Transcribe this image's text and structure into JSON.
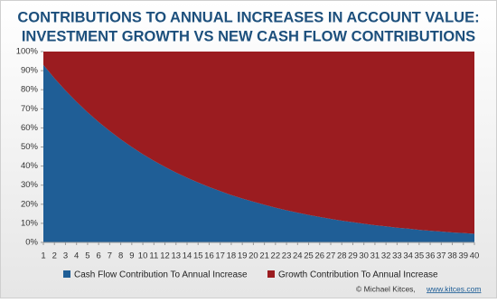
{
  "chart_data": {
    "type": "stacked_area",
    "title": [
      "CONTRIBUTIONS TO ANNUAL INCREASES IN ACCOUNT VALUE:",
      "INVESTMENT GROWTH VS NEW CASH FLOW CONTRIBUTIONS"
    ],
    "x": [
      1,
      2,
      3,
      4,
      5,
      6,
      7,
      8,
      9,
      10,
      11,
      12,
      13,
      14,
      15,
      16,
      17,
      18,
      19,
      20,
      21,
      22,
      23,
      24,
      25,
      26,
      27,
      28,
      29,
      30,
      31,
      32,
      33,
      34,
      35,
      36,
      37,
      38,
      39,
      40
    ],
    "xlim": [
      1,
      40
    ],
    "xticks": [
      1,
      2,
      3,
      4,
      5,
      6,
      7,
      8,
      9,
      10,
      11,
      12,
      13,
      14,
      15,
      16,
      17,
      18,
      19,
      20,
      21,
      22,
      23,
      24,
      25,
      26,
      27,
      28,
      29,
      30,
      31,
      32,
      33,
      34,
      35,
      36,
      37,
      38,
      39,
      40
    ],
    "ylim": [
      0,
      100
    ],
    "yticks": [
      {
        "value": 0,
        "label": "0%"
      },
      {
        "value": 10,
        "label": "10%"
      },
      {
        "value": 20,
        "label": "20%"
      },
      {
        "value": 30,
        "label": "30%"
      },
      {
        "value": 40,
        "label": "40%"
      },
      {
        "value": 50,
        "label": "50%"
      },
      {
        "value": 60,
        "label": "60%"
      },
      {
        "value": 70,
        "label": "70%"
      },
      {
        "value": 80,
        "label": "80%"
      },
      {
        "value": 90,
        "label": "90%"
      },
      {
        "value": 100,
        "label": "100%"
      }
    ],
    "series": [
      {
        "name": "Cash Flow Contribution To Annual Increase",
        "color": "#1f5e96",
        "values": [
          93.0,
          86.0,
          79.6,
          73.7,
          68.2,
          63.1,
          58.4,
          54.0,
          50.0,
          46.2,
          42.8,
          39.6,
          36.6,
          33.9,
          31.4,
          29.0,
          26.9,
          24.8,
          23.0,
          21.3,
          19.7,
          18.2,
          16.8,
          15.6,
          14.4,
          13.3,
          12.3,
          11.4,
          10.6,
          9.8,
          9.0,
          8.4,
          7.7,
          7.2,
          6.6,
          6.1,
          5.7,
          5.2,
          4.9,
          4.5
        ]
      },
      {
        "name": "Growth Contribution To Annual Increase",
        "color": "#9b1c20",
        "values": [
          7.0,
          14.0,
          20.4,
          26.3,
          31.8,
          36.9,
          41.6,
          46.0,
          50.0,
          53.8,
          57.2,
          60.4,
          63.4,
          66.1,
          68.6,
          71.0,
          73.1,
          75.2,
          77.0,
          78.7,
          80.3,
          81.8,
          83.2,
          84.4,
          85.6,
          86.7,
          87.7,
          88.6,
          89.4,
          90.2,
          91.0,
          91.6,
          92.3,
          92.8,
          93.4,
          93.9,
          94.3,
          94.8,
          95.1,
          95.5
        ]
      }
    ],
    "legend": "bottom",
    "credit": "© Michael Kitces,",
    "credit_link": "www.kitces.com"
  }
}
